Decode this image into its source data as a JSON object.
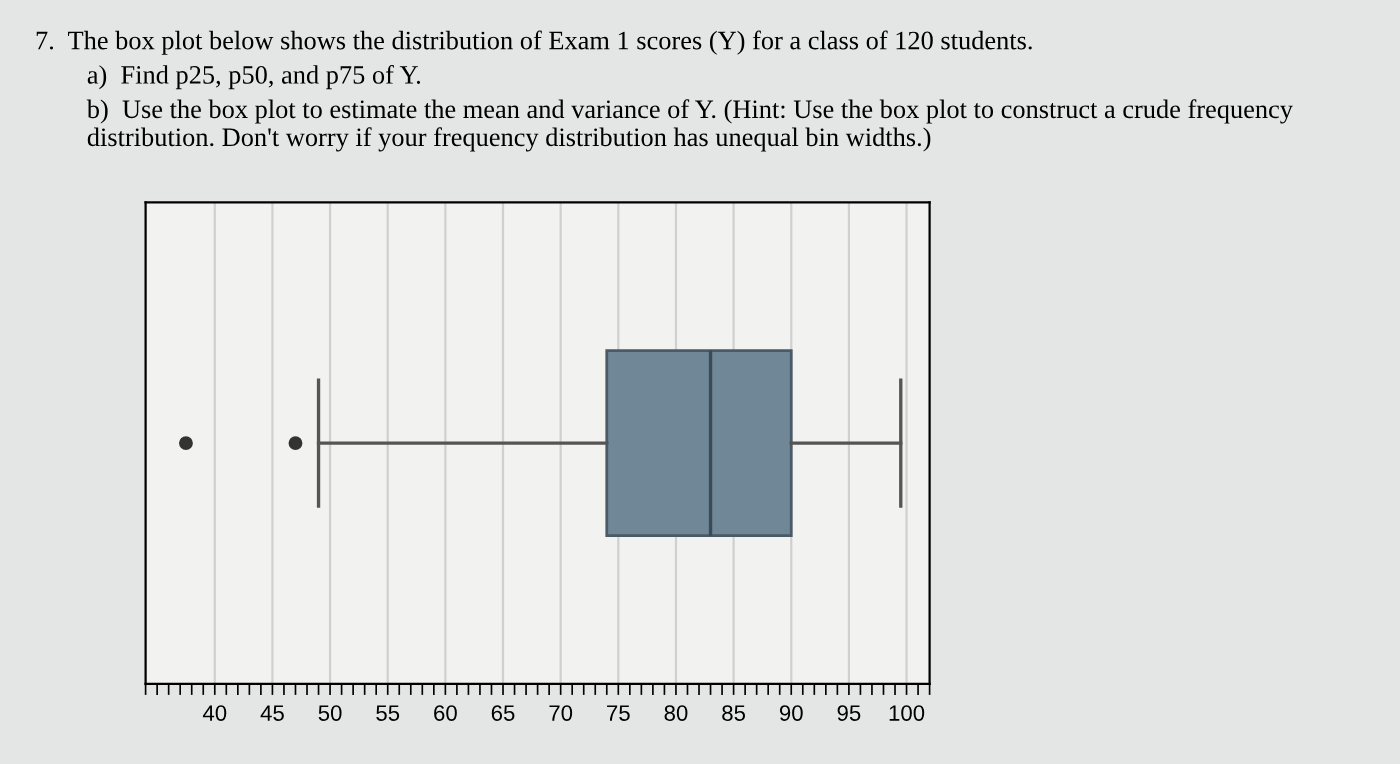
{
  "chart_data": {
    "type": "box",
    "orientation": "horizontal",
    "title": "7.  The box plot below shows the distribution of Exam 1 scores (Y) for a class of 120 students.",
    "annotations": [
      "a)  Find p25, p50, and p75 of Y.",
      "b)  Use the box plot to estimate the mean and variance of Y. (Hint: Use the box plot to construct a crude frequency distribution. Don't worry if your frequency distribution has unequal bin widths.)"
    ],
    "categories": [
      null
    ],
    "boxes": [
      {
        "low": 49,
        "q1": 74,
        "median": 83,
        "q3": 90,
        "high": 99.5,
        "outliers": [
          37.5,
          47
        ]
      }
    ],
    "color": "#6f8796",
    "xlim": [
      34,
      102
    ],
    "xticks": [
      40,
      45,
      50,
      55,
      60,
      65,
      70,
      75,
      80,
      85,
      90,
      95,
      100
    ],
    "grid": "x"
  }
}
